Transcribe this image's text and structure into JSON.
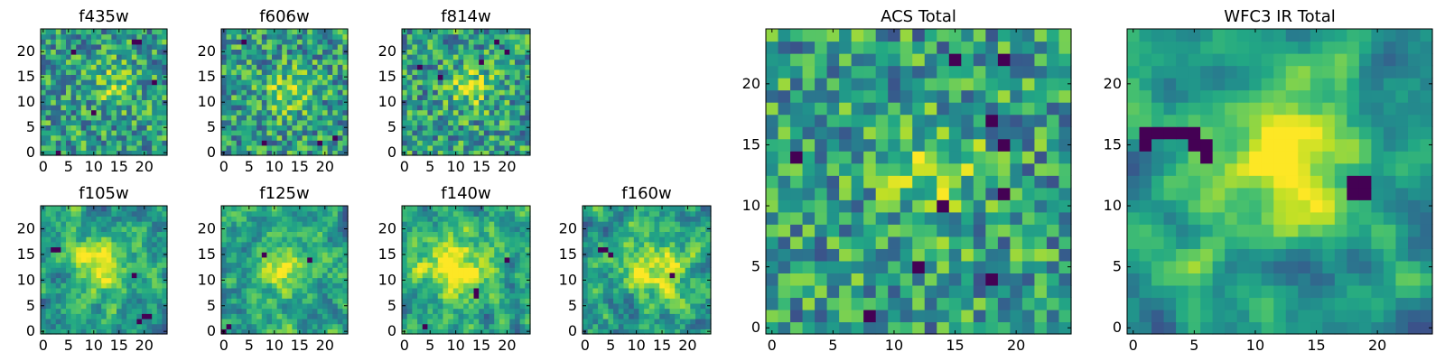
{
  "chart_data": [
    {
      "type": "heatmap",
      "title": "f435w",
      "xlim": [
        0,
        25
      ],
      "ylim": [
        0,
        25
      ],
      "xticks": [
        0,
        5,
        10,
        15,
        20
      ],
      "yticks": [
        0,
        5,
        10,
        15,
        20
      ],
      "seed": 11,
      "smooth": 0,
      "blob": [
        14,
        14,
        3,
        0.25
      ],
      "darks": [
        [
          18,
          22
        ],
        [
          19,
          22
        ],
        [
          3,
          0
        ],
        [
          22,
          14
        ],
        [
          10,
          8
        ],
        [
          6,
          20
        ]
      ]
    },
    {
      "type": "heatmap",
      "title": "f606w",
      "xlim": [
        0,
        25
      ],
      "ylim": [
        0,
        25
      ],
      "xticks": [
        0,
        5,
        10,
        15,
        20
      ],
      "yticks": [
        0,
        5,
        10,
        15,
        20
      ],
      "seed": 23,
      "smooth": 0,
      "blob": [
        13,
        12,
        3,
        0.3
      ],
      "darks": [
        [
          8,
          2
        ],
        [
          22,
          3
        ],
        [
          19,
          2
        ],
        [
          4,
          22
        ]
      ]
    },
    {
      "type": "heatmap",
      "title": "f814w",
      "xlim": [
        0,
        25
      ],
      "ylim": [
        0,
        25
      ],
      "xticks": [
        0,
        5,
        10,
        15,
        20
      ],
      "yticks": [
        0,
        5,
        10,
        15,
        20
      ],
      "seed": 37,
      "smooth": 0,
      "blob": [
        13,
        13,
        3,
        0.3
      ],
      "darks": [
        [
          18,
          22
        ],
        [
          20,
          20
        ],
        [
          3,
          17
        ],
        [
          15,
          18
        ],
        [
          7,
          15
        ]
      ]
    },
    {
      "type": "heatmap",
      "title": "f105w",
      "xlim": [
        0,
        25
      ],
      "ylim": [
        0,
        25
      ],
      "xticks": [
        0,
        5,
        10,
        15,
        20
      ],
      "yticks": [
        0,
        5,
        10,
        15,
        20
      ],
      "seed": 41,
      "smooth": 1,
      "blob": [
        12,
        13,
        4,
        0.45
      ],
      "darks": [
        [
          2,
          16
        ],
        [
          3,
          16
        ],
        [
          19,
          2
        ],
        [
          20,
          3
        ],
        [
          21,
          3
        ],
        [
          18,
          11
        ]
      ]
    },
    {
      "type": "heatmap",
      "title": "f125w",
      "xlim": [
        0,
        25
      ],
      "ylim": [
        0,
        25
      ],
      "xticks": [
        0,
        5,
        10,
        15,
        20
      ],
      "yticks": [
        0,
        5,
        10,
        15,
        20
      ],
      "seed": 53,
      "smooth": 1,
      "blob": [
        12,
        12,
        4,
        0.3
      ],
      "darks": [
        [
          0,
          0
        ],
        [
          1,
          1
        ],
        [
          8,
          15
        ],
        [
          17,
          14
        ]
      ]
    },
    {
      "type": "heatmap",
      "title": "f140w",
      "xlim": [
        0,
        25
      ],
      "ylim": [
        0,
        25
      ],
      "xticks": [
        0,
        5,
        10,
        15,
        20
      ],
      "yticks": [
        0,
        5,
        10,
        15,
        20
      ],
      "seed": 67,
      "smooth": 1,
      "blob": [
        10,
        13,
        5,
        0.4
      ],
      "darks": [
        [
          14,
          7
        ],
        [
          14,
          8
        ],
        [
          4,
          1
        ],
        [
          20,
          14
        ]
      ]
    },
    {
      "type": "heatmap",
      "title": "f160w",
      "xlim": [
        0,
        25
      ],
      "ylim": [
        0,
        25
      ],
      "xticks": [
        0,
        5,
        10,
        15,
        20
      ],
      "yticks": [
        0,
        5,
        10,
        15,
        20
      ],
      "seed": 79,
      "smooth": 1,
      "blob": [
        13,
        12,
        4,
        0.45
      ],
      "darks": [
        [
          3,
          16
        ],
        [
          4,
          16
        ],
        [
          5,
          15
        ],
        [
          17,
          11
        ]
      ]
    },
    {
      "type": "heatmap",
      "title": "ACS Total",
      "xlim": [
        0,
        25
      ],
      "ylim": [
        0,
        25
      ],
      "xticks": [
        0,
        5,
        10,
        15,
        20
      ],
      "yticks": [
        0,
        5,
        10,
        15,
        20
      ],
      "seed": 97,
      "smooth": 0,
      "blob": [
        13,
        13,
        3,
        0.25
      ],
      "darks": [
        [
          15,
          22
        ],
        [
          19,
          22
        ],
        [
          18,
          17
        ],
        [
          19,
          15
        ],
        [
          2,
          14
        ],
        [
          12,
          5
        ],
        [
          8,
          1
        ],
        [
          19,
          11
        ],
        [
          18,
          4
        ],
        [
          14,
          10
        ]
      ]
    },
    {
      "type": "heatmap",
      "title": "WFC3 IR Total",
      "xlim": [
        0,
        25
      ],
      "ylim": [
        0,
        25
      ],
      "xticks": [
        0,
        5,
        10,
        15,
        20
      ],
      "yticks": [
        0,
        5,
        10,
        15,
        20
      ],
      "seed": 131,
      "smooth": 2,
      "blob": [
        12,
        13,
        4,
        0.55
      ],
      "darks": [
        [
          1,
          16
        ],
        [
          2,
          16
        ],
        [
          3,
          16
        ],
        [
          4,
          16
        ],
        [
          5,
          16
        ],
        [
          1,
          15
        ],
        [
          5,
          15
        ],
        [
          6,
          15
        ],
        [
          6,
          14
        ],
        [
          18,
          12
        ],
        [
          19,
          12
        ],
        [
          18,
          11
        ],
        [
          19,
          11
        ]
      ]
    }
  ]
}
